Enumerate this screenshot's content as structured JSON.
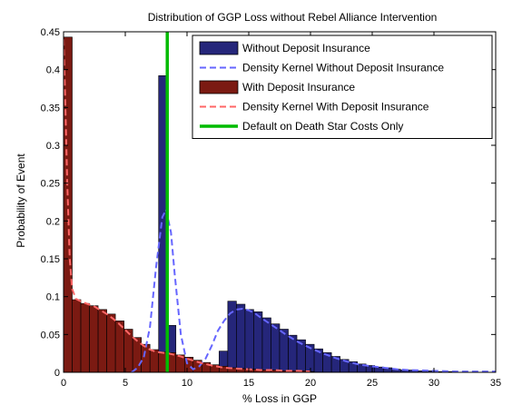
{
  "chart_data": {
    "type": "bar",
    "title": "Distribution of GGP Loss without Rebel Alliance Intervention",
    "xlabel": "% Loss in GGP",
    "ylabel": "Probability of Event",
    "xlim": [
      0,
      35
    ],
    "ylim": [
      0,
      0.45
    ],
    "xticks": [
      0,
      5,
      10,
      15,
      20,
      25,
      30,
      35
    ],
    "yticks": [
      0,
      0.05,
      0.1,
      0.15,
      0.2,
      0.25,
      0.3,
      0.35,
      0.4,
      0.45
    ],
    "xtick_labels": [
      "0",
      "5",
      "10",
      "15",
      "20",
      "25",
      "30",
      "35"
    ],
    "ytick_labels": [
      "0",
      "0.05",
      "0.1",
      "0.15",
      "0.2",
      "0.25",
      "0.3",
      "0.35",
      "0.4",
      "0.45"
    ],
    "grid": false,
    "legend_position": "top-right",
    "series": [
      {
        "name": "Without Deposit Insurance",
        "kind": "histogram",
        "color": "#25267a",
        "bin_width": 0.7,
        "bins": [
          {
            "x": 7.7,
            "y": 0.392
          },
          {
            "x": 8.4,
            "y": 0.062
          },
          {
            "x": 11.9,
            "y": 0.008
          },
          {
            "x": 12.6,
            "y": 0.028
          },
          {
            "x": 13.3,
            "y": 0.094
          },
          {
            "x": 14.0,
            "y": 0.09
          },
          {
            "x": 14.7,
            "y": 0.083
          },
          {
            "x": 15.4,
            "y": 0.08
          },
          {
            "x": 16.1,
            "y": 0.072
          },
          {
            "x": 16.8,
            "y": 0.064
          },
          {
            "x": 17.5,
            "y": 0.057
          },
          {
            "x": 18.2,
            "y": 0.049
          },
          {
            "x": 18.9,
            "y": 0.043
          },
          {
            "x": 19.6,
            "y": 0.037
          },
          {
            "x": 20.3,
            "y": 0.031
          },
          {
            "x": 21.0,
            "y": 0.026
          },
          {
            "x": 21.7,
            "y": 0.021
          },
          {
            "x": 22.4,
            "y": 0.017
          },
          {
            "x": 23.1,
            "y": 0.014
          },
          {
            "x": 23.8,
            "y": 0.011
          },
          {
            "x": 24.5,
            "y": 0.009
          },
          {
            "x": 25.2,
            "y": 0.007
          },
          {
            "x": 25.9,
            "y": 0.006
          },
          {
            "x": 26.6,
            "y": 0.004
          },
          {
            "x": 27.3,
            "y": 0.003
          },
          {
            "x": 28.0,
            "y": 0.003
          },
          {
            "x": 28.7,
            "y": 0.002
          },
          {
            "x": 29.4,
            "y": 0.002
          },
          {
            "x": 30.1,
            "y": 0.001
          },
          {
            "x": 30.8,
            "y": 0.001
          }
        ]
      },
      {
        "name": "Density Kernel Without Deposit Insurance",
        "kind": "line",
        "color": "#6666ff",
        "style": "dashed",
        "points": [
          [
            5.5,
            0.0
          ],
          [
            6.0,
            0.006
          ],
          [
            6.5,
            0.02
          ],
          [
            7.0,
            0.06
          ],
          [
            7.5,
            0.14
          ],
          [
            8.0,
            0.205
          ],
          [
            8.3,
            0.215
          ],
          [
            8.7,
            0.185
          ],
          [
            9.0,
            0.13
          ],
          [
            9.5,
            0.05
          ],
          [
            10.0,
            0.012
          ],
          [
            10.5,
            0.004
          ],
          [
            11.0,
            0.008
          ],
          [
            11.5,
            0.018
          ],
          [
            12.0,
            0.035
          ],
          [
            12.5,
            0.055
          ],
          [
            13.0,
            0.068
          ],
          [
            13.5,
            0.078
          ],
          [
            14.0,
            0.083
          ],
          [
            14.5,
            0.084
          ],
          [
            15.0,
            0.082
          ],
          [
            15.5,
            0.078
          ],
          [
            16.0,
            0.072
          ],
          [
            17.0,
            0.061
          ],
          [
            18.0,
            0.05
          ],
          [
            19.0,
            0.04
          ],
          [
            20.0,
            0.032
          ],
          [
            21.0,
            0.025
          ],
          [
            22.0,
            0.019
          ],
          [
            23.0,
            0.014
          ],
          [
            24.0,
            0.01
          ],
          [
            25.0,
            0.008
          ],
          [
            26.0,
            0.006
          ],
          [
            27.0,
            0.004
          ],
          [
            28.0,
            0.003
          ],
          [
            30.0,
            0.002
          ],
          [
            32.0,
            0.001
          ],
          [
            35.0,
            0.001
          ]
        ]
      },
      {
        "name": "With Deposit Insurance",
        "kind": "histogram",
        "color": "#7b1a12",
        "bin_width": 0.7,
        "bins": [
          {
            "x": 0.0,
            "y": 0.443
          },
          {
            "x": 0.7,
            "y": 0.096
          },
          {
            "x": 1.4,
            "y": 0.091
          },
          {
            "x": 2.1,
            "y": 0.088
          },
          {
            "x": 2.8,
            "y": 0.083
          },
          {
            "x": 3.5,
            "y": 0.077
          },
          {
            "x": 4.2,
            "y": 0.068
          },
          {
            "x": 4.9,
            "y": 0.057
          },
          {
            "x": 5.6,
            "y": 0.046
          },
          {
            "x": 6.3,
            "y": 0.037
          },
          {
            "x": 7.0,
            "y": 0.03
          },
          {
            "x": 7.7,
            "y": 0.027
          },
          {
            "x": 8.4,
            "y": 0.026
          },
          {
            "x": 9.1,
            "y": 0.023
          },
          {
            "x": 9.8,
            "y": 0.02
          },
          {
            "x": 10.5,
            "y": 0.016
          },
          {
            "x": 11.2,
            "y": 0.013
          },
          {
            "x": 11.9,
            "y": 0.01
          },
          {
            "x": 12.6,
            "y": 0.008
          },
          {
            "x": 13.3,
            "y": 0.006
          },
          {
            "x": 14.0,
            "y": 0.005
          },
          {
            "x": 14.7,
            "y": 0.004
          },
          {
            "x": 15.4,
            "y": 0.004
          },
          {
            "x": 16.1,
            "y": 0.003
          },
          {
            "x": 16.8,
            "y": 0.003
          },
          {
            "x": 17.5,
            "y": 0.002
          },
          {
            "x": 18.2,
            "y": 0.002
          },
          {
            "x": 18.9,
            "y": 0.002
          },
          {
            "x": 19.6,
            "y": 0.001
          }
        ]
      },
      {
        "name": "Density Kernel With Deposit Insurance",
        "kind": "line",
        "color": "#ff6666",
        "style": "dashed",
        "points": [
          [
            0.0,
            0.44
          ],
          [
            0.15,
            0.35
          ],
          [
            0.3,
            0.25
          ],
          [
            0.5,
            0.15
          ],
          [
            0.7,
            0.11
          ],
          [
            1.0,
            0.097
          ],
          [
            1.5,
            0.093
          ],
          [
            2.0,
            0.09
          ],
          [
            2.5,
            0.087
          ],
          [
            3.0,
            0.082
          ],
          [
            3.5,
            0.077
          ],
          [
            4.0,
            0.071
          ],
          [
            4.5,
            0.064
          ],
          [
            5.0,
            0.056
          ],
          [
            5.5,
            0.048
          ],
          [
            6.0,
            0.041
          ],
          [
            6.5,
            0.035
          ],
          [
            7.0,
            0.03
          ],
          [
            7.5,
            0.027
          ],
          [
            8.0,
            0.026
          ],
          [
            8.5,
            0.025
          ],
          [
            9.0,
            0.023
          ],
          [
            9.5,
            0.021
          ],
          [
            10.0,
            0.018
          ],
          [
            11.0,
            0.013
          ],
          [
            12.0,
            0.009
          ],
          [
            13.0,
            0.006
          ],
          [
            14.0,
            0.005
          ],
          [
            15.0,
            0.004
          ],
          [
            16.0,
            0.003
          ],
          [
            17.0,
            0.003
          ],
          [
            18.0,
            0.002
          ],
          [
            19.0,
            0.002
          ],
          [
            20.0,
            0.001
          ]
        ]
      },
      {
        "name": "Default on Death Star Costs Only",
        "kind": "vline",
        "color": "#00bb00",
        "x": 8.4
      }
    ]
  }
}
